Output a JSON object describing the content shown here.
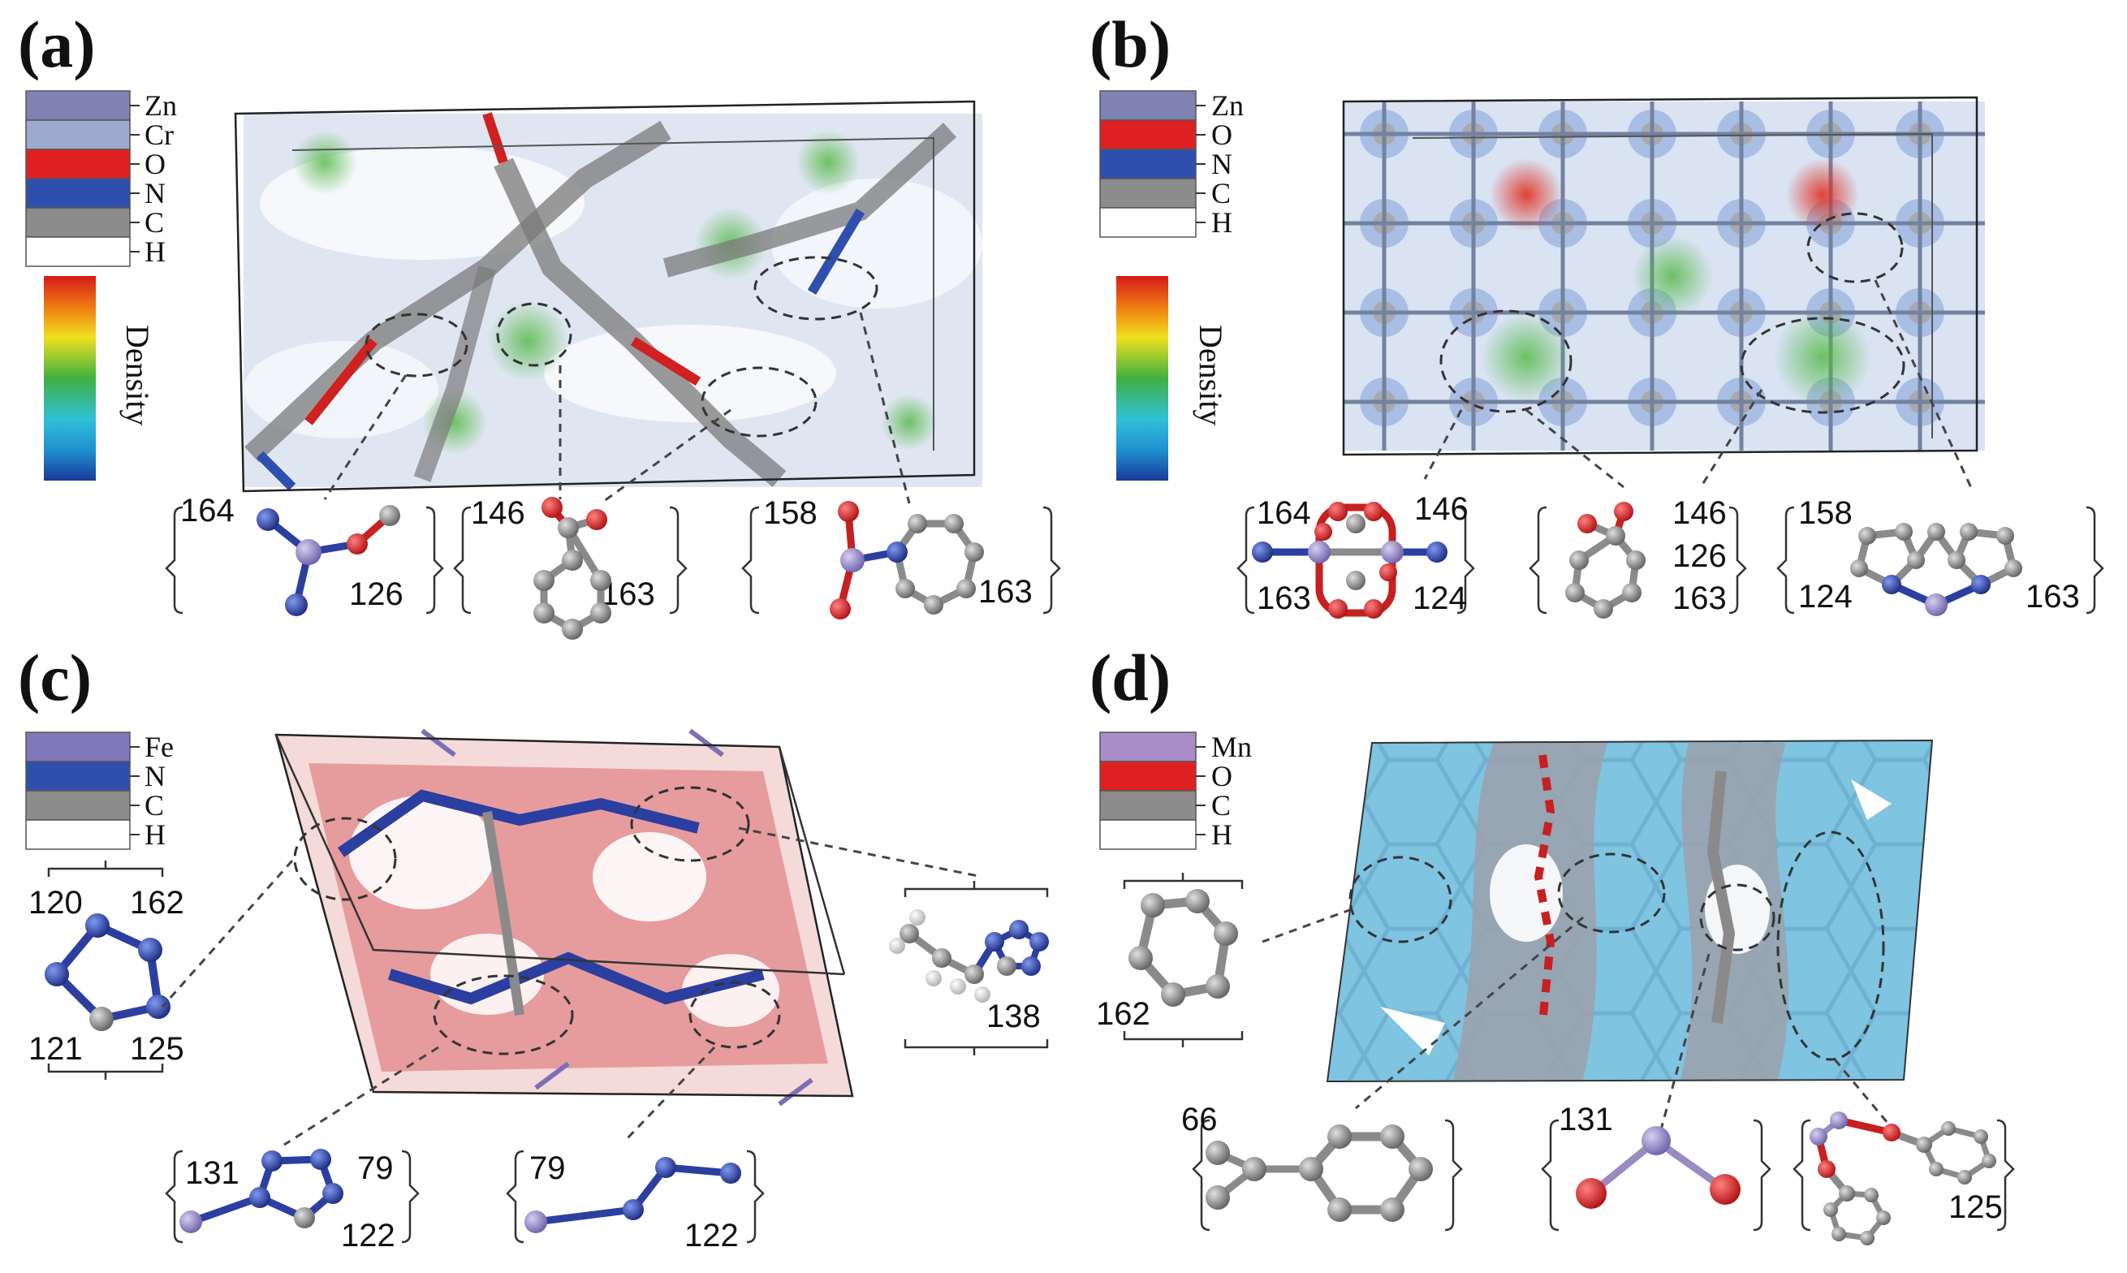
{
  "panels": [
    {
      "label": "(a)",
      "legend": [
        {
          "name": "Zn",
          "color": "#7f82b2"
        },
        {
          "name": "Cr",
          "color": "#9ea9d0"
        },
        {
          "name": "O",
          "color": "#e02020"
        },
        {
          "name": "N",
          "color": "#2f4fae"
        },
        {
          "name": "C",
          "color": "#8c8c8c"
        },
        {
          "name": "H",
          "color": "#ffffff"
        }
      ],
      "colorbar_label": "Density",
      "fragments": [
        {
          "numbers": [
            "164",
            "126"
          ]
        },
        {
          "numbers": [
            "146",
            "163"
          ]
        },
        {
          "numbers": [
            "158",
            "163"
          ]
        }
      ]
    },
    {
      "label": "(b)",
      "legend": [
        {
          "name": "Zn",
          "color": "#7f82b2"
        },
        {
          "name": "O",
          "color": "#e02020"
        },
        {
          "name": "N",
          "color": "#2f4fae"
        },
        {
          "name": "C",
          "color": "#8c8c8c"
        },
        {
          "name": "H",
          "color": "#ffffff"
        }
      ],
      "colorbar_label": "Density",
      "fragments": [
        {
          "numbers": [
            "164",
            "146",
            "163",
            "124"
          ]
        },
        {
          "numbers": [
            "146",
            "126",
            "163"
          ]
        },
        {
          "numbers": [
            "158",
            "124",
            "163"
          ]
        }
      ]
    },
    {
      "label": "(c)",
      "legend": [
        {
          "name": "Fe",
          "color": "#8078b8"
        },
        {
          "name": "N",
          "color": "#2f4fae"
        },
        {
          "name": "C",
          "color": "#8c8c8c"
        },
        {
          "name": "H",
          "color": "#ffffff"
        }
      ],
      "fragments": [
        {
          "numbers": [
            "120",
            "162",
            "121",
            "125"
          ]
        },
        {
          "numbers": [
            "138"
          ]
        },
        {
          "numbers": [
            "131",
            "79",
            "122"
          ]
        },
        {
          "numbers": [
            "79",
            "122"
          ]
        }
      ]
    },
    {
      "label": "(d)",
      "legend": [
        {
          "name": "Mn",
          "color": "#a88cc8"
        },
        {
          "name": "O",
          "color": "#e02020"
        },
        {
          "name": "C",
          "color": "#8c8c8c"
        },
        {
          "name": "H",
          "color": "#ffffff"
        }
      ],
      "fragments": [
        {
          "numbers": [
            "162"
          ]
        },
        {
          "numbers": [
            "66"
          ]
        },
        {
          "numbers": [
            "131"
          ]
        },
        {
          "numbers": [
            "125"
          ]
        }
      ]
    }
  ]
}
